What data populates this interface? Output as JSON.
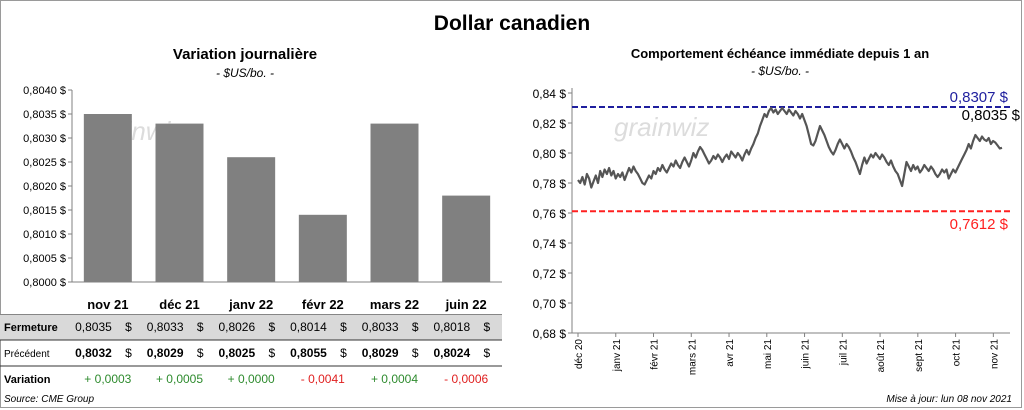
{
  "title": "Dollar canadien",
  "watermark": "grainwiz",
  "left_chart": {
    "title": "Variation  journalière",
    "subtitle": "- $US/bo. -"
  },
  "right_chart": {
    "title": "Comportement échéance immédiate depuis 1 an",
    "subtitle": "- $US/bo. -"
  },
  "table": {
    "rows": [
      {
        "label": "Fermeture",
        "values": [
          "0,8035",
          "0,8033",
          "0,8026",
          "0,8014",
          "0,8033",
          "0,8018"
        ],
        "unit": "$"
      },
      {
        "label": "Précédent",
        "values": [
          "0,8032",
          "0,8029",
          "0,8025",
          "0,8055",
          "0,8029",
          "0,8024"
        ],
        "unit": "$"
      },
      {
        "label": "Variation",
        "values": [
          "+ 0,0003",
          "+ 0,0005",
          "+ 0,0000",
          "- 0,0041",
          "+ 0,0004",
          "- 0,0006"
        ]
      }
    ],
    "colors": {
      "positive": "#2e8b2e",
      "negative": "#e02020",
      "header_bg": "#d9d9d9"
    }
  },
  "footer": {
    "source": "Source: CME Group",
    "updated": "Mise à jour: lun 08 nov 2021"
  },
  "chart_data": [
    {
      "type": "bar",
      "categories": [
        "nov 21",
        "déc 21",
        "janv 22",
        "févr 22",
        "mars 22",
        "juin 22"
      ],
      "values": [
        0.8035,
        0.8033,
        0.8026,
        0.8014,
        0.8033,
        0.8018
      ],
      "ylim": [
        0.8,
        0.804
      ],
      "yticks": [
        "0,8000 $",
        "0,8005 $",
        "0,8010 $",
        "0,8015 $",
        "0,8020 $",
        "0,8025 $",
        "0,8030 $",
        "0,8035 $",
        "0,8040 $"
      ],
      "color": "#808080",
      "grid": false
    },
    {
      "type": "line",
      "x_ticks": [
        "déc 20",
        "janv 21",
        "févr 21",
        "mars 21",
        "avr 21",
        "mai 21",
        "juin 21",
        "juil 21",
        "août 21",
        "sept 21",
        "oct 21",
        "nov 21"
      ],
      "yticks": [
        "0,68 $",
        "0,70 $",
        "0,72 $",
        "0,74 $",
        "0,76 $",
        "0,78 $",
        "0,80 $",
        "0,82 $",
        "0,84 $"
      ],
      "ylim": [
        0.68,
        0.845
      ],
      "series": [
        {
          "values": [
            0.782,
            0.78,
            0.784,
            0.779,
            0.786,
            0.783,
            0.777,
            0.781,
            0.785,
            0.78,
            0.788,
            0.784,
            0.789,
            0.786,
            0.79,
            0.785,
            0.788,
            0.783,
            0.786,
            0.784,
            0.787,
            0.782,
            0.786,
            0.79,
            0.787,
            0.791,
            0.788,
            0.786,
            0.783,
            0.78,
            0.779,
            0.782,
            0.785,
            0.783,
            0.788,
            0.786,
            0.79,
            0.788,
            0.792,
            0.789,
            0.787,
            0.79,
            0.793,
            0.791,
            0.795,
            0.792,
            0.79,
            0.794,
            0.797,
            0.794,
            0.791,
            0.795,
            0.8,
            0.797,
            0.801,
            0.804,
            0.802,
            0.799,
            0.796,
            0.793,
            0.795,
            0.798,
            0.796,
            0.799,
            0.797,
            0.794,
            0.797,
            0.799,
            0.796,
            0.801,
            0.799,
            0.797,
            0.8,
            0.798,
            0.795,
            0.799,
            0.802,
            0.799,
            0.803,
            0.806,
            0.81,
            0.813,
            0.818,
            0.822,
            0.826,
            0.824,
            0.828,
            0.83,
            0.827,
            0.829,
            0.826,
            0.828,
            0.83,
            0.828,
            0.826,
            0.829,
            0.827,
            0.825,
            0.828,
            0.826,
            0.823,
            0.826,
            0.822,
            0.818,
            0.812,
            0.806,
            0.805,
            0.808,
            0.813,
            0.818,
            0.815,
            0.812,
            0.808,
            0.804,
            0.801,
            0.799,
            0.802,
            0.806,
            0.809,
            0.806,
            0.803,
            0.806,
            0.804,
            0.801,
            0.797,
            0.794,
            0.79,
            0.786,
            0.792,
            0.797,
            0.793,
            0.796,
            0.799,
            0.797,
            0.8,
            0.798,
            0.796,
            0.799,
            0.797,
            0.794,
            0.792,
            0.795,
            0.791,
            0.788,
            0.786,
            0.782,
            0.778,
            0.786,
            0.794,
            0.791,
            0.788,
            0.792,
            0.789,
            0.791,
            0.787,
            0.789,
            0.792,
            0.79,
            0.788,
            0.791,
            0.789,
            0.786,
            0.784,
            0.786,
            0.789,
            0.787,
            0.789,
            0.783,
            0.786,
            0.789,
            0.787,
            0.79,
            0.793,
            0.796,
            0.799,
            0.802,
            0.806,
            0.803,
            0.808,
            0.812,
            0.81,
            0.808,
            0.811,
            0.809,
            0.808,
            0.81,
            0.806,
            0.808,
            0.807,
            0.805,
            0.803,
            0.8035
          ],
          "color": "#555555"
        }
      ],
      "hlines": [
        {
          "value": 0.8307,
          "label": "0,8307  $",
          "color": "#1f1f9e"
        },
        {
          "value": 0.7612,
          "label": "0,7612  $",
          "color": "#ff2020"
        }
      ],
      "last_label": "0,8035 $",
      "grid": false
    }
  ]
}
